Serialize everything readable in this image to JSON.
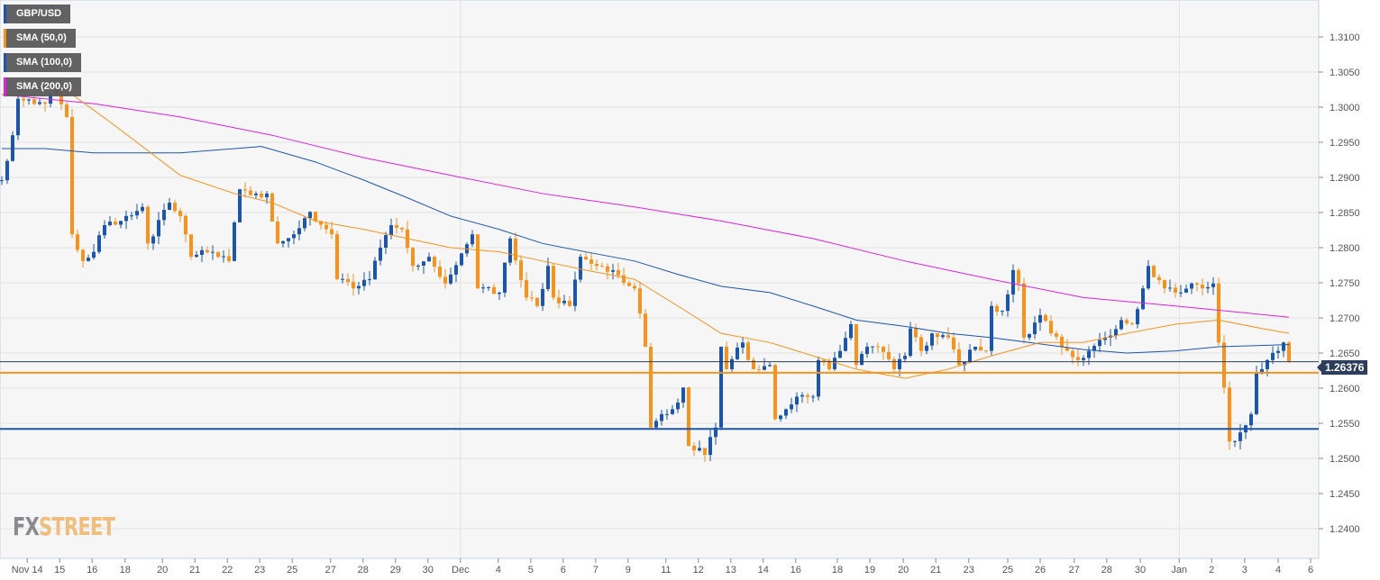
{
  "chart_data": {
    "type": "candlestick",
    "title": "GBP/USD",
    "legend": [
      {
        "label": "GBP/USD",
        "color": "#1a56b0"
      },
      {
        "label": "SMA (50,0)",
        "color": "#f7931a"
      },
      {
        "label": "SMA (100,0)",
        "color": "#1a56b0"
      },
      {
        "label": "SMA (200,0)",
        "color": "#e020e0"
      }
    ],
    "legend_placement": "top-left",
    "x_unit": "4h bar index",
    "ylim": [
      1.2358,
      1.3153
    ],
    "yticks": [
      "1.3100",
      "1.3050",
      "1.3000",
      "1.2950",
      "1.2900",
      "1.2850",
      "1.2800",
      "1.2750",
      "1.2700",
      "1.2650",
      "1.2600",
      "1.2550",
      "1.2500",
      "1.2450",
      "1.2400"
    ],
    "xticks": [
      [
        "Nov 14",
        4.7
      ],
      [
        "15",
        10.7
      ],
      [
        "16",
        16.7
      ],
      [
        "18",
        22.8
      ],
      [
        "20",
        29.7
      ],
      [
        "21",
        35.7
      ],
      [
        "22",
        41.7
      ],
      [
        "23",
        47.7
      ],
      [
        "25",
        53.7
      ],
      [
        "27",
        60.8
      ],
      [
        "28",
        66.8
      ],
      [
        "29",
        72.8
      ],
      [
        "30",
        78.8
      ],
      [
        "Dec",
        84.8
      ],
      [
        "4",
        91.8
      ],
      [
        "5",
        97.8
      ],
      [
        "6",
        103.8
      ],
      [
        "7",
        109.8
      ],
      [
        "9",
        115.8
      ],
      [
        "11",
        122.8
      ],
      [
        "12",
        128.8
      ],
      [
        "13",
        134.8
      ],
      [
        "14",
        140.8
      ],
      [
        "16",
        146.8
      ],
      [
        "18",
        154.5
      ],
      [
        "19",
        160.5
      ],
      [
        "20",
        166.7
      ],
      [
        "21",
        172.7
      ],
      [
        "23",
        178.8
      ],
      [
        "25",
        186
      ],
      [
        "26",
        192
      ],
      [
        "27",
        198.3
      ],
      [
        "28",
        204.3
      ],
      [
        "30",
        210.5
      ],
      [
        "Jan",
        217.7
      ],
      [
        "2",
        223.7
      ],
      [
        "3",
        229.8
      ],
      [
        "4",
        236
      ],
      [
        "6",
        242
      ]
    ],
    "close_keypoints": [
      [
        0,
        1.2896
      ],
      [
        2,
        1.296
      ],
      [
        3,
        1.3012
      ],
      [
        8,
        1.3005
      ],
      [
        10,
        1.3024
      ],
      [
        12,
        1.2986
      ],
      [
        13,
        1.2819
      ],
      [
        15,
        1.2781
      ],
      [
        17,
        1.2794
      ],
      [
        19,
        1.2832
      ],
      [
        22,
        1.2838
      ],
      [
        26,
        1.2858
      ],
      [
        27,
        1.2806
      ],
      [
        31,
        1.2864
      ],
      [
        33,
        1.2845
      ],
      [
        35,
        1.2787
      ],
      [
        39,
        1.2794
      ],
      [
        42,
        1.2781
      ],
      [
        44,
        1.2883
      ],
      [
        47,
        1.2877
      ],
      [
        49,
        1.2877
      ],
      [
        51,
        1.2806
      ],
      [
        54,
        1.2819
      ],
      [
        57,
        1.2851
      ],
      [
        61,
        1.2819
      ],
      [
        62,
        1.2755
      ],
      [
        65,
        1.2742
      ],
      [
        68,
        1.2755
      ],
      [
        70,
        1.28
      ],
      [
        72,
        1.2832
      ],
      [
        74,
        1.2826
      ],
      [
        76,
        1.2774
      ],
      [
        79,
        1.2787
      ],
      [
        82,
        1.2749
      ],
      [
        87,
        1.2819
      ],
      [
        88,
        1.2742
      ],
      [
        92,
        1.2736
      ],
      [
        94,
        1.2813
      ],
      [
        97,
        1.2729
      ],
      [
        99,
        1.2717
      ],
      [
        101,
        1.2774
      ],
      [
        102,
        1.2729
      ],
      [
        105,
        1.2717
      ],
      [
        107,
        1.2787
      ],
      [
        110,
        1.2774
      ],
      [
        113,
        1.2768
      ],
      [
        117,
        1.2742
      ],
      [
        119,
        1.2659
      ],
      [
        120,
        1.2544
      ],
      [
        122,
        1.2563
      ],
      [
        124,
        1.257
      ],
      [
        126,
        1.2601
      ],
      [
        127,
        1.2518
      ],
      [
        130,
        1.2505
      ],
      [
        132,
        1.2544
      ],
      [
        133,
        1.2659
      ],
      [
        134,
        1.2627
      ],
      [
        137,
        1.2665
      ],
      [
        139,
        1.2627
      ],
      [
        142,
        1.2633
      ],
      [
        143,
        1.2556
      ],
      [
        145,
        1.257
      ],
      [
        147,
        1.2588
      ],
      [
        150,
        1.2588
      ],
      [
        151,
        1.264
      ],
      [
        153,
        1.2627
      ],
      [
        155,
        1.2653
      ],
      [
        157,
        1.2691
      ],
      [
        158,
        1.2633
      ],
      [
        160,
        1.2659
      ],
      [
        162,
        1.2659
      ],
      [
        165,
        1.2627
      ],
      [
        167,
        1.2646
      ],
      [
        168,
        1.2685
      ],
      [
        170,
        1.2653
      ],
      [
        172,
        1.2678
      ],
      [
        175,
        1.2672
      ],
      [
        177,
        1.2633
      ],
      [
        180,
        1.2659
      ],
      [
        182,
        1.2653
      ],
      [
        183,
        1.2717
      ],
      [
        185,
        1.271
      ],
      [
        187,
        1.2768
      ],
      [
        188,
        1.2749
      ],
      [
        189,
        1.2672
      ],
      [
        192,
        1.2704
      ],
      [
        194,
        1.2678
      ],
      [
        197,
        1.2653
      ],
      [
        199,
        1.264
      ],
      [
        201,
        1.2653
      ],
      [
        204,
        1.2672
      ],
      [
        207,
        1.2697
      ],
      [
        209,
        1.2691
      ],
      [
        211,
        1.2742
      ],
      [
        212,
        1.2774
      ],
      [
        215,
        1.2742
      ],
      [
        217,
        1.2736
      ],
      [
        220,
        1.2749
      ],
      [
        222,
        1.2742
      ],
      [
        224,
        1.2749
      ],
      [
        225,
        1.2665
      ],
      [
        226,
        1.2601
      ],
      [
        227,
        1.2524
      ],
      [
        229,
        1.2537
      ],
      [
        231,
        1.2563
      ],
      [
        232,
        1.2621
      ],
      [
        234,
        1.264
      ],
      [
        236,
        1.2653
      ],
      [
        237,
        1.2665
      ],
      [
        238,
        1.26376
      ]
    ],
    "sma50": [
      [
        0,
        1.3018
      ],
      [
        8,
        1.3031
      ],
      [
        13,
        1.3018
      ],
      [
        20,
        1.2979
      ],
      [
        33,
        1.2903
      ],
      [
        43,
        1.2877
      ],
      [
        50,
        1.2864
      ],
      [
        58,
        1.2838
      ],
      [
        67,
        1.2826
      ],
      [
        75,
        1.2813
      ],
      [
        83,
        1.28
      ],
      [
        92,
        1.2794
      ],
      [
        100,
        1.2781
      ],
      [
        108,
        1.2768
      ],
      [
        117,
        1.2755
      ],
      [
        125,
        1.2717
      ],
      [
        133,
        1.2678
      ],
      [
        142,
        1.2665
      ],
      [
        150,
        1.2646
      ],
      [
        158,
        1.2627
      ],
      [
        167,
        1.2614
      ],
      [
        175,
        1.2627
      ],
      [
        183,
        1.2646
      ],
      [
        192,
        1.2665
      ],
      [
        200,
        1.2665
      ],
      [
        208,
        1.2678
      ],
      [
        217,
        1.2691
      ],
      [
        225,
        1.2697
      ],
      [
        233,
        1.2685
      ],
      [
        238,
        1.2678
      ]
    ],
    "sma100": [
      [
        0,
        1.2941
      ],
      [
        8,
        1.2941
      ],
      [
        17,
        1.2935
      ],
      [
        33,
        1.2935
      ],
      [
        48,
        1.2944
      ],
      [
        58,
        1.2922
      ],
      [
        67,
        1.2896
      ],
      [
        75,
        1.2871
      ],
      [
        83,
        1.2845
      ],
      [
        92,
        1.2826
      ],
      [
        100,
        1.2806
      ],
      [
        108,
        1.2794
      ],
      [
        117,
        1.2781
      ],
      [
        125,
        1.2762
      ],
      [
        133,
        1.2745
      ],
      [
        142,
        1.2736
      ],
      [
        150,
        1.2717
      ],
      [
        158,
        1.2697
      ],
      [
        167,
        1.2688
      ],
      [
        175,
        1.2678
      ],
      [
        183,
        1.2672
      ],
      [
        192,
        1.2663
      ],
      [
        200,
        1.2655
      ],
      [
        208,
        1.265
      ],
      [
        217,
        1.2653
      ],
      [
        225,
        1.2659
      ],
      [
        238,
        1.2662
      ]
    ],
    "sma200": [
      [
        0,
        1.3018
      ],
      [
        17,
        1.3005
      ],
      [
        33,
        1.2986
      ],
      [
        50,
        1.296
      ],
      [
        67,
        1.2928
      ],
      [
        83,
        1.2903
      ],
      [
        100,
        1.2877
      ],
      [
        117,
        1.2858
      ],
      [
        133,
        1.2838
      ],
      [
        150,
        1.2813
      ],
      [
        167,
        1.2781
      ],
      [
        183,
        1.2755
      ],
      [
        200,
        1.2729
      ],
      [
        217,
        1.2717
      ],
      [
        238,
        1.2701
      ]
    ],
    "horizontal_lines": [
      {
        "price": 1.2622,
        "color": "#f7931a"
      },
      {
        "price": 1.2542,
        "color": "#1a56b0"
      }
    ],
    "last_price": "1.26376"
  },
  "branding": {
    "logo_fx": "FX",
    "logo_street": "STREET"
  }
}
